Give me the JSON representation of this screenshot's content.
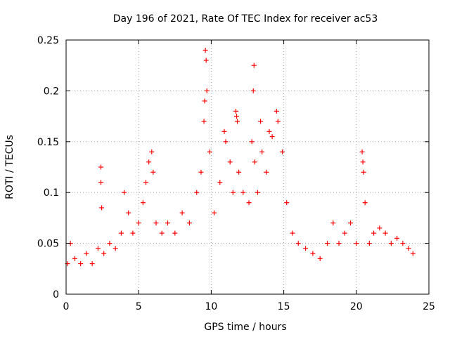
{
  "chart_data": {
    "type": "scatter",
    "title": "Day 196 of 2021, Rate Of TEC Index for receiver ac53",
    "xlabel": "GPS time / hours",
    "ylabel": "ROTI / TECUs",
    "xlim": [
      0,
      25
    ],
    "ylim": [
      0,
      0.25
    ],
    "xticks": [
      0,
      5,
      10,
      15,
      20,
      25
    ],
    "xtick_labels": [
      "0",
      "5",
      "10",
      "15",
      "20",
      "25"
    ],
    "yticks": [
      0,
      0.05,
      0.1,
      0.15,
      0.2,
      0.25
    ],
    "ytick_labels": [
      "0",
      "0.05",
      "0.1",
      "0.15",
      "0.2",
      "0.25"
    ],
    "grid": true,
    "marker": "+",
    "marker_color": "#ff0000",
    "series": [
      {
        "x": [
          0.1,
          0.3,
          0.6,
          1.0,
          1.4,
          1.8,
          2.2,
          2.4,
          2.4,
          2.45,
          2.6,
          3.0,
          3.4,
          3.8,
          4.0,
          4.3,
          4.6,
          5.0,
          5.3,
          5.5,
          5.7,
          5.9,
          6.0,
          6.2,
          6.6,
          7.0,
          7.5,
          8.0,
          8.5,
          9.0,
          9.3,
          9.5,
          9.55,
          9.6,
          9.65,
          9.7,
          9.9,
          10.2,
          10.6,
          10.9,
          11.0,
          11.3,
          11.5,
          11.7,
          11.75,
          11.8,
          11.9,
          12.2,
          12.6,
          12.8,
          12.9,
          12.95,
          13.0,
          13.2,
          13.4,
          13.5,
          13.8,
          14.0,
          14.2,
          14.5,
          14.6,
          14.9,
          15.2,
          15.6,
          16.0,
          16.5,
          17.0,
          17.5,
          18.0,
          18.4,
          18.8,
          19.2,
          19.6,
          20.0,
          20.4,
          20.45,
          20.5,
          20.6,
          20.9,
          21.2,
          21.6,
          22.0,
          22.4,
          22.8,
          23.2,
          23.6,
          23.9
        ],
        "y": [
          0.03,
          0.05,
          0.035,
          0.03,
          0.04,
          0.03,
          0.045,
          0.125,
          0.11,
          0.085,
          0.04,
          0.05,
          0.045,
          0.06,
          0.1,
          0.08,
          0.06,
          0.07,
          0.09,
          0.11,
          0.13,
          0.14,
          0.12,
          0.07,
          0.06,
          0.07,
          0.06,
          0.08,
          0.07,
          0.1,
          0.12,
          0.17,
          0.19,
          0.24,
          0.23,
          0.2,
          0.14,
          0.08,
          0.11,
          0.16,
          0.15,
          0.13,
          0.1,
          0.18,
          0.175,
          0.17,
          0.12,
          0.1,
          0.09,
          0.15,
          0.2,
          0.225,
          0.13,
          0.1,
          0.17,
          0.14,
          0.12,
          0.16,
          0.155,
          0.18,
          0.17,
          0.14,
          0.09,
          0.06,
          0.05,
          0.045,
          0.04,
          0.035,
          0.05,
          0.07,
          0.05,
          0.06,
          0.07,
          0.05,
          0.14,
          0.13,
          0.12,
          0.09,
          0.05,
          0.06,
          0.065,
          0.06,
          0.05,
          0.055,
          0.05,
          0.045,
          0.04
        ]
      }
    ]
  }
}
